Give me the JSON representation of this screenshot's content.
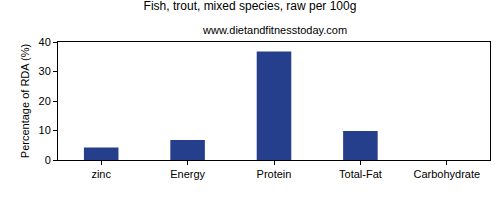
{
  "chart_data": {
    "type": "bar",
    "title": "Fish, trout, mixed species, raw per 100g",
    "subtitle": "www.dietandfitnesstoday.com",
    "y_label": "Percentage of RDA (%)",
    "categories": [
      "zinc",
      "Energy",
      "Protein",
      "Total-Fat",
      "Carbohydrate"
    ],
    "values": [
      4.2,
      6.8,
      36.8,
      9.8,
      0
    ],
    "color": "#263f8c",
    "ylim": [
      0,
      40
    ],
    "yticks": [
      0,
      10,
      20,
      30,
      40
    ],
    "grid": false
  }
}
